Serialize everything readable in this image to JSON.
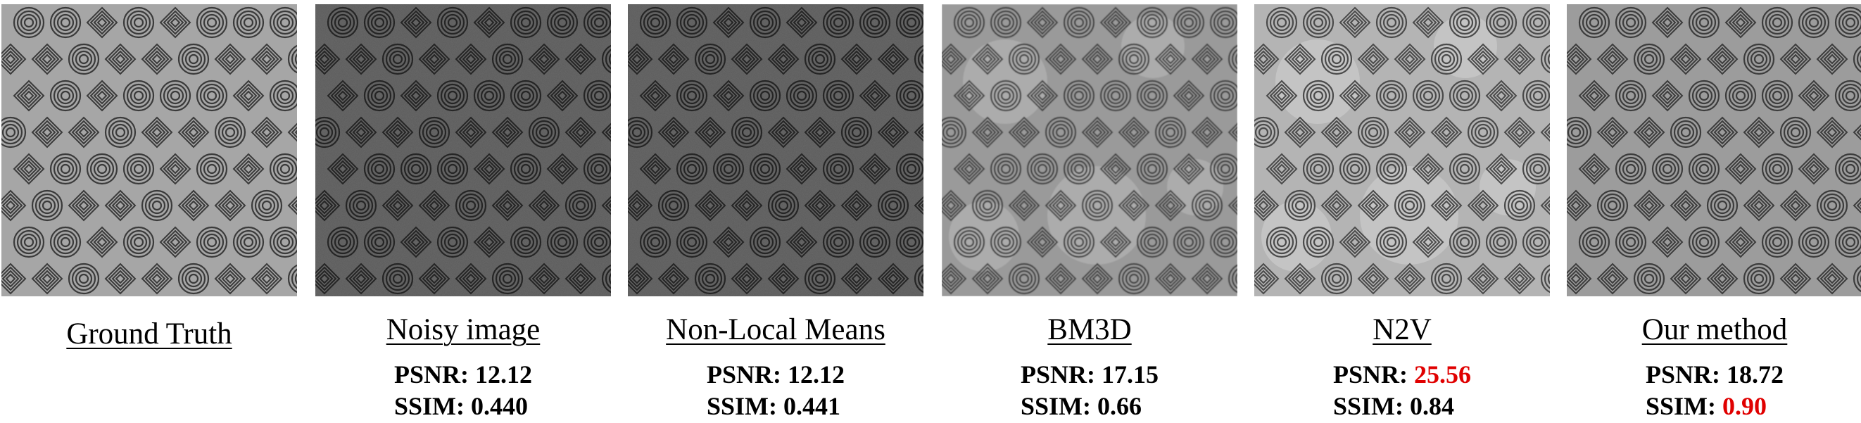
{
  "panels": [
    {
      "caption": "Ground Truth",
      "psnr_label": "",
      "psnr": "",
      "ssim_label": "",
      "ssim": "",
      "psnr_best": false,
      "ssim_best": false,
      "style": "gt"
    },
    {
      "caption": "Noisy image",
      "psnr_label": "PSNR:",
      "psnr": "12.12",
      "ssim_label": "SSIM:",
      "ssim": "0.440",
      "psnr_best": false,
      "ssim_best": false,
      "style": "noisy"
    },
    {
      "caption": "Non-Local Means",
      "psnr_label": "PSNR:",
      "psnr": "12.12",
      "ssim_label": "SSIM:",
      "ssim": "0.441",
      "psnr_best": false,
      "ssim_best": false,
      "style": "noisy"
    },
    {
      "caption": "BM3D",
      "psnr_label": "PSNR:",
      "psnr": "17.15",
      "ssim_label": "SSIM:",
      "ssim": "0.66",
      "psnr_best": false,
      "ssim_best": false,
      "style": "blur"
    },
    {
      "caption": "N2V",
      "psnr_label": "PSNR:",
      "psnr": "25.56",
      "ssim_label": "SSIM:",
      "ssim": "0.84",
      "psnr_best": true,
      "ssim_best": false,
      "style": "n2v"
    },
    {
      "caption": "Our method",
      "psnr_label": "PSNR:",
      "psnr": "18.72",
      "ssim_label": "SSIM:",
      "ssim": "0.90",
      "psnr_best": false,
      "ssim_best": true,
      "style": "ours"
    }
  ],
  "colors": {
    "best": "#e00000",
    "text": "#000000"
  }
}
